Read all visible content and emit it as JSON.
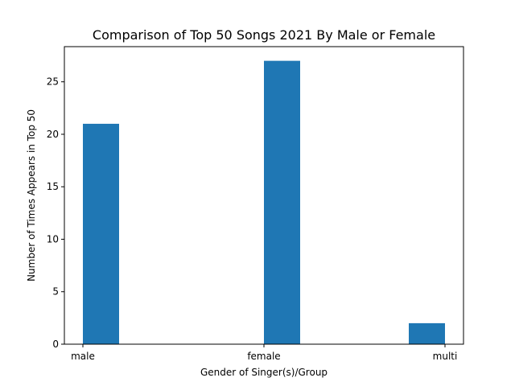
{
  "chart_data": {
    "type": "bar",
    "title": "Comparison of Top 50 Songs 2021 By Male or Female",
    "xlabel": "Gender of Singer(s)/Group",
    "ylabel": "Number of Times Appears in Top 50",
    "categories": [
      "male",
      "female",
      "multi"
    ],
    "values": [
      21,
      27,
      2
    ],
    "ylim": [
      0,
      28.35
    ],
    "yticks": [
      0,
      5,
      10,
      15,
      20,
      25
    ],
    "grid": false,
    "bar_color": "#1f77b4"
  }
}
